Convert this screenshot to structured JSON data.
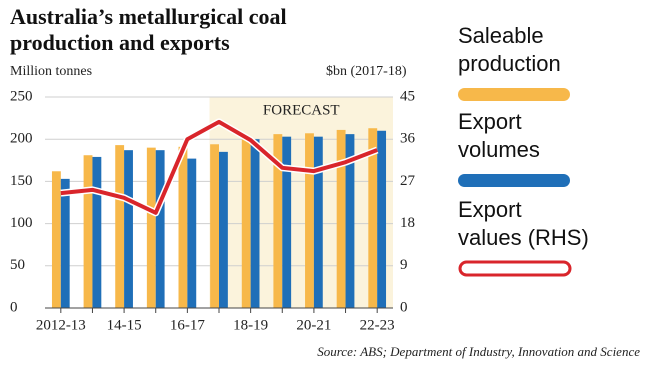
{
  "chart_data": {
    "type": "bar",
    "title": "Australia’s metallurgical coal production and exports",
    "y_label": "Million tonnes",
    "y2_label": "$bn (2017-18)",
    "annotation": "FORECAST",
    "source": "Source: ABS; Department of Industry, Innovation and Science",
    "categories": [
      "2012-13",
      null,
      "14-15",
      null,
      "16-17",
      null,
      "18-19",
      null,
      "20-21",
      null,
      "22-23"
    ],
    "series": [
      {
        "name": "Saleable production",
        "type": "bar",
        "color": "#f7b84a",
        "values": [
          162,
          181,
          193,
          190,
          191,
          194,
          203,
          206,
          207,
          211,
          213
        ]
      },
      {
        "name": "Export volumes",
        "type": "bar",
        "color": "#1f6fb8",
        "values": [
          153,
          179,
          187,
          187,
          177,
          185,
          200,
          203,
          203,
          206,
          210
        ]
      },
      {
        "name": "Export values (RHS)",
        "type": "line",
        "axis": "y2",
        "color": "#d9252b",
        "values": [
          24.5,
          25.2,
          23.5,
          20.3,
          36,
          39.7,
          35.8,
          29.9,
          29.2,
          31.1,
          33.7
        ]
      }
    ],
    "ylim": [
      0,
      250
    ],
    "yticks": [
      0,
      50,
      100,
      150,
      200,
      250
    ],
    "y2lim": [
      0,
      45
    ],
    "y2ticks": [
      0,
      9,
      18,
      27,
      36,
      45
    ],
    "grid": true
  }
}
